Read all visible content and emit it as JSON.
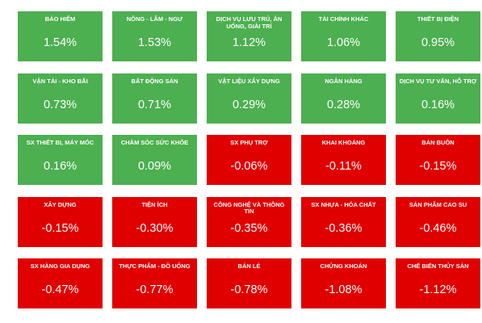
{
  "colors": {
    "positive": "#4caf50",
    "negative": "#e00000"
  },
  "sectors": [
    {
      "label": "BẢO HIỂM",
      "value": "1.54%",
      "trend": "pos"
    },
    {
      "label": "NÔNG - LÂM - NGƯ",
      "value": "1.53%",
      "trend": "pos"
    },
    {
      "label": "DỊCH VỤ LƯU TRÚ, ĂN UỐNG, GIẢI TRÍ",
      "value": "1.12%",
      "trend": "pos"
    },
    {
      "label": "TÀI CHÍNH KHÁC",
      "value": "1.06%",
      "trend": "pos"
    },
    {
      "label": "THIẾT BỊ ĐIỆN",
      "value": "0.95%",
      "trend": "pos"
    },
    {
      "label": "VẬN TẢI - KHO BÃI",
      "value": "0.73%",
      "trend": "pos"
    },
    {
      "label": "BẤT ĐỘNG SẢN",
      "value": "0.71%",
      "trend": "pos"
    },
    {
      "label": "VẬT LIỆU XÂY DỰNG",
      "value": "0.29%",
      "trend": "pos"
    },
    {
      "label": "NGÂN HÀNG",
      "value": "0.28%",
      "trend": "pos"
    },
    {
      "label": "DỊCH VỤ TƯ VẤN, HỖ TRỢ",
      "value": "0.16%",
      "trend": "pos"
    },
    {
      "label": "SX THIẾT BỊ, MÁY MÓC",
      "value": "0.16%",
      "trend": "pos"
    },
    {
      "label": "CHĂM SÓC SỨC KHỎE",
      "value": "0.09%",
      "trend": "pos"
    },
    {
      "label": "SX PHỤ TRỢ",
      "value": "-0.06%",
      "trend": "neg"
    },
    {
      "label": "KHAI KHOÁNG",
      "value": "-0.11%",
      "trend": "neg"
    },
    {
      "label": "BÁN BUÔN",
      "value": "-0.15%",
      "trend": "neg"
    },
    {
      "label": "XÂY DỰNG",
      "value": "-0.15%",
      "trend": "neg"
    },
    {
      "label": "TIỆN ÍCH",
      "value": "-0.30%",
      "trend": "neg"
    },
    {
      "label": "CÔNG NGHỆ VÀ THÔNG TIN",
      "value": "-0.35%",
      "trend": "neg"
    },
    {
      "label": "SX NHỰA - HÓA CHẤT",
      "value": "-0.36%",
      "trend": "neg"
    },
    {
      "label": "SẢN PHẨM CAO SU",
      "value": "-0.46%",
      "trend": "neg"
    },
    {
      "label": "SX HÀNG GIA DỤNG",
      "value": "-0.47%",
      "trend": "neg"
    },
    {
      "label": "THỰC PHẨM - ĐỒ UỐNG",
      "value": "-0.77%",
      "trend": "neg"
    },
    {
      "label": "BÁN LẺ",
      "value": "-0.78%",
      "trend": "neg"
    },
    {
      "label": "CHỨNG KHOÁN",
      "value": "-1.08%",
      "trend": "neg"
    },
    {
      "label": "CHẾ BIẾN THỦY SẢN",
      "value": "-1.12%",
      "trend": "neg"
    }
  ]
}
